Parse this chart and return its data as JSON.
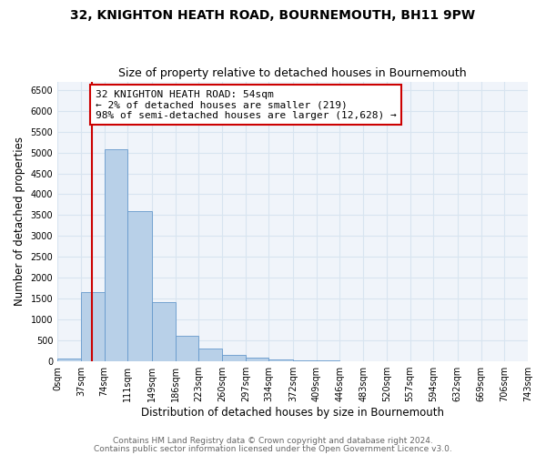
{
  "title": "32, KNIGHTON HEATH ROAD, BOURNEMOUTH, BH11 9PW",
  "subtitle": "Size of property relative to detached houses in Bournemouth",
  "xlabel": "Distribution of detached houses by size in Bournemouth",
  "ylabel": "Number of detached properties",
  "bar_edges": [
    0,
    37,
    74,
    111,
    149,
    186,
    223,
    260,
    297,
    334,
    372,
    409,
    446,
    483,
    520,
    557,
    594,
    632,
    669,
    706,
    743
  ],
  "bar_heights": [
    75,
    1650,
    5080,
    3600,
    1420,
    620,
    305,
    150,
    90,
    50,
    30,
    15,
    5,
    2,
    1,
    1,
    0,
    0,
    0,
    0
  ],
  "bar_color": "#b8d0e8",
  "bar_edge_color": "#6699cc",
  "property_line_x": 54,
  "property_line_color": "#cc0000",
  "annotation_line1": "32 KNIGHTON HEATH ROAD: 54sqm",
  "annotation_line2": "← 2% of detached houses are smaller (219)",
  "annotation_line3": "98% of semi-detached houses are larger (12,628) →",
  "annotation_box_color": "#cc0000",
  "ylim": [
    0,
    6700
  ],
  "yticks": [
    0,
    500,
    1000,
    1500,
    2000,
    2500,
    3000,
    3500,
    4000,
    4500,
    5000,
    5500,
    6000,
    6500
  ],
  "xtick_labels": [
    "0sqm",
    "37sqm",
    "74sqm",
    "111sqm",
    "149sqm",
    "186sqm",
    "223sqm",
    "260sqm",
    "297sqm",
    "334sqm",
    "372sqm",
    "409sqm",
    "446sqm",
    "483sqm",
    "520sqm",
    "557sqm",
    "594sqm",
    "632sqm",
    "669sqm",
    "706sqm",
    "743sqm"
  ],
  "footer1": "Contains HM Land Registry data © Crown copyright and database right 2024.",
  "footer2": "Contains public sector information licensed under the Open Government Licence v3.0.",
  "background_color": "#ffffff",
  "plot_bg_color": "#f0f4fa",
  "grid_color": "#d8e4f0",
  "title_fontsize": 10,
  "subtitle_fontsize": 9,
  "axis_label_fontsize": 8.5,
  "tick_fontsize": 7,
  "footer_fontsize": 6.5,
  "annotation_fontsize": 8
}
